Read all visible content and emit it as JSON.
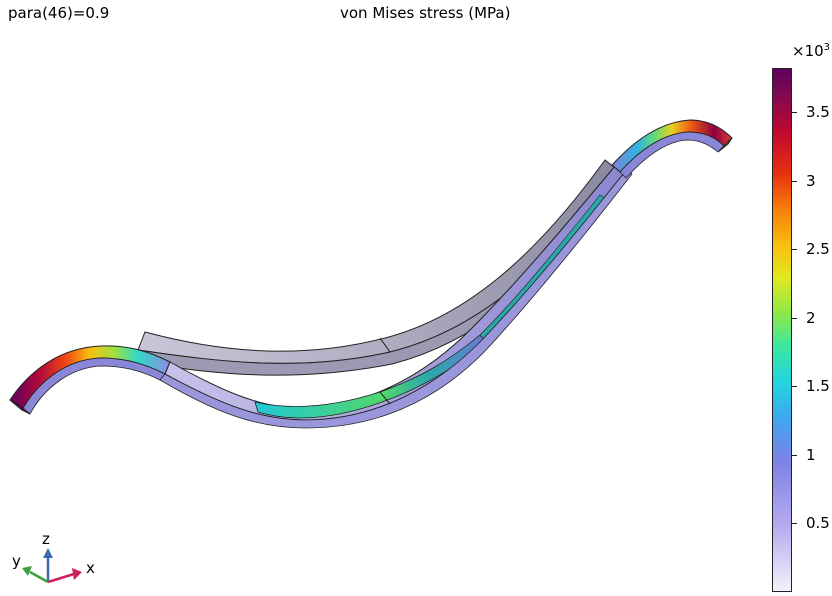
{
  "header": {
    "parameter_label": "para(46)=0.9",
    "plot_title": "von Mises stress (MPa)"
  },
  "colorbar": {
    "multiplier_base": "×10",
    "multiplier_exponent": "3",
    "ticks": [
      "3.5",
      "3",
      "2.5",
      "2",
      "1.5",
      "1",
      "0.5"
    ],
    "range": [
      0,
      3.8
    ],
    "colormap": [
      "#f4f2fb",
      "#b8acef",
      "#7c82e6",
      "#3fa6f0",
      "#22d6e0",
      "#3de8a0",
      "#8ce84a",
      "#e0e81e",
      "#f8c010",
      "#f88008",
      "#e83010",
      "#c00830",
      "#800a50",
      "#600060"
    ]
  },
  "axes_triad": {
    "x_label": "x",
    "y_label": "y",
    "z_label": "z",
    "x_color": "#d0205a",
    "y_color": "#3aa040",
    "z_color": "#3a6ab0"
  }
}
